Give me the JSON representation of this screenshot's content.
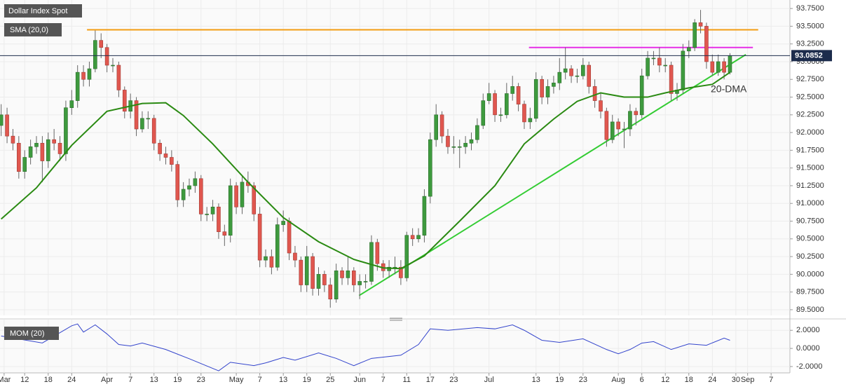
{
  "chart_data": {
    "type": "candlestick",
    "xlim": [
      -0.2,
      134.2
    ],
    "ylim": [
      89.42,
      93.87
    ],
    "grid": true,
    "up_color": "#3e9a3e",
    "down_color": "#e0574f",
    "xticks": [
      {
        "value": 0.5,
        "label": "Mar"
      },
      {
        "value": 4,
        "label": "12"
      },
      {
        "value": 8,
        "label": "18"
      },
      {
        "value": 12,
        "label": "24"
      },
      {
        "value": 18,
        "label": "Apr"
      },
      {
        "value": 22,
        "label": "7"
      },
      {
        "value": 26,
        "label": "13"
      },
      {
        "value": 30,
        "label": "19"
      },
      {
        "value": 34,
        "label": "23"
      },
      {
        "value": 40,
        "label": "May"
      },
      {
        "value": 44,
        "label": "7"
      },
      {
        "value": 48,
        "label": "13"
      },
      {
        "value": 52,
        "label": "19"
      },
      {
        "value": 56,
        "label": "25"
      },
      {
        "value": 61,
        "label": "Jun"
      },
      {
        "value": 65,
        "label": "7"
      },
      {
        "value": 69,
        "label": "11"
      },
      {
        "value": 73,
        "label": "17"
      },
      {
        "value": 77,
        "label": "23"
      },
      {
        "value": 83,
        "label": "Jul"
      },
      {
        "value": 91,
        "label": "13"
      },
      {
        "value": 95,
        "label": "19"
      },
      {
        "value": 99,
        "label": "23"
      },
      {
        "value": 105,
        "label": "Aug"
      },
      {
        "value": 109,
        "label": "6"
      },
      {
        "value": 113,
        "label": "12"
      },
      {
        "value": 117,
        "label": "18"
      },
      {
        "value": 121,
        "label": "24"
      },
      {
        "value": 125,
        "label": "30"
      },
      {
        "value": 127,
        "label": "Sep"
      },
      {
        "value": 131,
        "label": "7"
      }
    ],
    "yticks": [
      {
        "value": 89.5,
        "label": "89.5000"
      },
      {
        "value": 89.75,
        "label": "89.7500"
      },
      {
        "value": 90.0,
        "label": "90.0000"
      },
      {
        "value": 90.25,
        "label": "90.2500"
      },
      {
        "value": 90.5,
        "label": "90.5000"
      },
      {
        "value": 90.75,
        "label": "90.7500"
      },
      {
        "value": 91.0,
        "label": "91.0000"
      },
      {
        "value": 91.25,
        "label": "91.2500"
      },
      {
        "value": 91.5,
        "label": "91.5000"
      },
      {
        "value": 91.75,
        "label": "91.7500"
      },
      {
        "value": 92.0,
        "label": "92.0000"
      },
      {
        "value": 92.25,
        "label": "92.2500"
      },
      {
        "value": 92.5,
        "label": "92.5000"
      },
      {
        "value": 92.75,
        "label": "92.7500"
      },
      {
        "value": 93.0,
        "label": "93.0000"
      },
      {
        "value": 93.25,
        "label": "93.2500"
      },
      {
        "value": 93.5,
        "label": "93.5000"
      },
      {
        "value": 93.75,
        "label": "93.7500"
      }
    ],
    "last_price": 93.0852,
    "series": [
      {
        "name": "Dollar Index Spot",
        "open": [
          92.1,
          92.25,
          91.95,
          91.85,
          91.45,
          91.65,
          91.8,
          91.85,
          91.6,
          91.9,
          91.85,
          91.7,
          92.35,
          92.45,
          92.85,
          92.75,
          92.9,
          93.3,
          93.2,
          92.95,
          92.95,
          92.6,
          92.3,
          92.45,
          92.05,
          92.2,
          92.2,
          91.85,
          91.7,
          91.65,
          91.55,
          91.05,
          91.2,
          91.25,
          91.35,
          90.85,
          90.85,
          90.95,
          90.6,
          90.55,
          91.25,
          90.95,
          91.3,
          91.25,
          90.85,
          90.2,
          90.25,
          90.1,
          90.7,
          90.75,
          90.3,
          90.2,
          89.85,
          90.25,
          89.8,
          90.0,
          89.85,
          89.65,
          90.05,
          89.95,
          90.05,
          89.85,
          89.9,
          89.9,
          90.45,
          90.15,
          90.05,
          90.1,
          90.1,
          89.95,
          90.55,
          90.5,
          90.55,
          91.1,
          91.9,
          92.25,
          91.95,
          91.8,
          91.8,
          91.8,
          91.85,
          91.9,
          92.1,
          92.45,
          92.55,
          92.25,
          92.25,
          92.55,
          92.65,
          92.4,
          92.15,
          92.2,
          92.75,
          92.5,
          92.65,
          92.7,
          92.85,
          92.9,
          92.8,
          92.8,
          92.95,
          92.65,
          92.45,
          92.3,
          91.9,
          92.15,
          92.05,
          92.05,
          92.3,
          92.25,
          92.8,
          93.05,
          93.05,
          92.95,
          92.95,
          92.55,
          92.6,
          93.15,
          93.2,
          93.55,
          93.5,
          93.0,
          92.85,
          93.0,
          92.85
        ],
        "high": [
          92.4,
          92.35,
          92.05,
          91.95,
          91.75,
          91.9,
          91.95,
          91.95,
          92.0,
          92.05,
          91.95,
          92.45,
          92.6,
          92.95,
          92.95,
          93.0,
          93.44,
          93.4,
          93.25,
          93.05,
          93.0,
          92.65,
          92.55,
          92.5,
          92.3,
          92.3,
          92.25,
          91.9,
          91.8,
          91.75,
          91.6,
          91.3,
          91.35,
          91.45,
          91.4,
          90.95,
          91.05,
          91.0,
          90.7,
          91.35,
          91.3,
          91.4,
          91.45,
          91.3,
          90.95,
          90.35,
          90.35,
          90.8,
          90.9,
          90.8,
          90.4,
          90.25,
          90.4,
          90.3,
          90.1,
          90.05,
          89.95,
          90.15,
          90.1,
          90.25,
          90.1,
          90.0,
          90.0,
          90.55,
          90.5,
          90.2,
          90.2,
          90.25,
          90.2,
          90.6,
          90.65,
          90.65,
          91.2,
          92.0,
          92.4,
          92.3,
          92.05,
          91.95,
          91.9,
          91.95,
          92.0,
          92.2,
          92.55,
          92.7,
          92.6,
          92.35,
          92.7,
          92.8,
          92.7,
          92.45,
          92.35,
          92.85,
          92.8,
          92.75,
          92.8,
          93.05,
          93.2,
          92.95,
          92.9,
          93.05,
          93.0,
          92.75,
          92.55,
          92.35,
          92.25,
          92.2,
          92.15,
          92.4,
          92.35,
          92.9,
          93.15,
          93.15,
          93.2,
          93.05,
          93.0,
          92.7,
          93.25,
          93.3,
          93.6,
          93.73,
          93.55,
          93.1,
          93.1,
          93.05,
          93.12
        ],
        "low": [
          91.95,
          91.85,
          91.75,
          91.35,
          91.35,
          91.55,
          91.7,
          91.3,
          91.5,
          91.75,
          91.6,
          91.6,
          92.25,
          92.35,
          92.65,
          92.65,
          92.85,
          93.05,
          92.85,
          92.85,
          92.5,
          92.2,
          92.2,
          91.95,
          92.0,
          92.05,
          91.75,
          91.6,
          91.55,
          91.45,
          90.95,
          90.95,
          91.1,
          91.15,
          90.75,
          90.75,
          90.75,
          90.5,
          90.4,
          90.45,
          90.85,
          90.85,
          91.15,
          90.75,
          90.1,
          90.1,
          90.0,
          90.05,
          90.6,
          90.2,
          90.1,
          89.75,
          89.75,
          89.7,
          89.7,
          89.75,
          89.53,
          89.6,
          89.85,
          89.85,
          89.75,
          89.65,
          89.8,
          89.85,
          90.05,
          89.95,
          89.95,
          90.0,
          89.85,
          89.9,
          90.4,
          90.45,
          90.45,
          91.0,
          91.8,
          91.85,
          91.7,
          91.7,
          91.5,
          91.7,
          91.75,
          91.85,
          92.05,
          92.4,
          92.15,
          92.15,
          92.2,
          92.45,
          92.3,
          92.05,
          92.05,
          92.15,
          92.4,
          92.4,
          92.55,
          92.6,
          92.75,
          92.7,
          92.7,
          92.75,
          92.55,
          92.35,
          92.2,
          91.8,
          91.85,
          91.95,
          91.78,
          91.95,
          92.1,
          92.2,
          92.75,
          92.95,
          92.85,
          92.85,
          92.45,
          92.45,
          92.55,
          93.05,
          93.15,
          93.4,
          92.9,
          92.8,
          92.8,
          92.75,
          92.82
        ],
        "close": [
          92.25,
          91.95,
          91.85,
          91.45,
          91.65,
          91.8,
          91.85,
          91.6,
          91.9,
          91.85,
          91.7,
          92.35,
          92.45,
          92.85,
          92.75,
          92.9,
          93.3,
          93.2,
          92.95,
          92.95,
          92.6,
          92.3,
          92.45,
          92.05,
          92.2,
          92.2,
          91.85,
          91.7,
          91.65,
          91.55,
          91.05,
          91.2,
          91.25,
          91.35,
          90.85,
          90.85,
          90.95,
          90.6,
          90.55,
          91.25,
          90.95,
          91.3,
          91.25,
          90.85,
          90.2,
          90.25,
          90.1,
          90.7,
          90.75,
          90.3,
          90.2,
          89.85,
          90.25,
          89.8,
          90.0,
          89.85,
          89.65,
          90.05,
          89.95,
          90.05,
          89.85,
          89.9,
          89.9,
          90.45,
          90.15,
          90.05,
          90.1,
          90.1,
          89.95,
          90.55,
          90.5,
          90.55,
          91.1,
          91.9,
          92.25,
          91.95,
          91.8,
          91.8,
          91.8,
          91.85,
          91.9,
          92.1,
          92.45,
          92.55,
          92.25,
          92.25,
          92.55,
          92.65,
          92.4,
          92.15,
          92.2,
          92.75,
          92.5,
          92.65,
          92.7,
          92.85,
          92.9,
          92.8,
          92.8,
          92.95,
          92.65,
          92.45,
          92.3,
          91.9,
          92.15,
          92.05,
          92.05,
          92.3,
          92.25,
          92.8,
          93.05,
          93.05,
          92.95,
          92.95,
          92.55,
          92.6,
          93.15,
          93.2,
          93.55,
          93.5,
          93.0,
          92.85,
          93.0,
          92.85,
          93.0852
        ]
      },
      {
        "name": "SMA (20,0)",
        "color": "#2a8a12",
        "x": [
          0,
          6,
          12,
          18,
          24,
          28,
          31,
          36,
          42,
          48,
          54,
          60,
          65,
          68,
          72,
          78,
          84,
          89,
          94,
          98,
          102,
          106,
          110,
          113,
          117,
          121,
          124
        ],
        "values": [
          90.78,
          91.22,
          91.82,
          92.3,
          92.41,
          92.42,
          92.24,
          91.84,
          91.3,
          90.8,
          90.46,
          90.21,
          90.09,
          90.08,
          90.26,
          90.75,
          91.25,
          91.84,
          92.19,
          92.44,
          92.56,
          92.5,
          92.5,
          92.56,
          92.63,
          92.68,
          92.85
        ]
      }
    ],
    "levels": [
      {
        "color": "#f39c12",
        "x": [
          14.6,
          128.8
        ],
        "y": [
          93.45,
          93.45
        ]
      },
      {
        "color": "#e62ee6",
        "x": [
          89.8,
          127.9
        ],
        "y": [
          93.2,
          93.2
        ]
      },
      {
        "color": "#33cc33",
        "x": [
          60.9,
          126.7
        ],
        "y": [
          89.7,
          93.1
        ]
      }
    ],
    "annotation": "20-DMA",
    "momentum": {
      "name": "MOM (20)",
      "color": "#3344cc",
      "ylim": [
        -2.7,
        3.18
      ],
      "yticks": [
        {
          "value": 2,
          "label": "2.0000"
        },
        {
          "value": 0,
          "label": "0.0000"
        },
        {
          "value": -2,
          "label": "-2.0000"
        }
      ],
      "x": [
        0,
        7,
        12,
        13,
        14,
        16,
        18,
        20,
        22,
        24,
        28,
        32,
        37,
        39,
        43,
        45,
        48,
        50,
        54,
        57,
        60,
        63,
        68,
        71,
        73,
        76,
        81,
        84,
        87,
        89,
        92,
        95,
        99,
        103,
        105,
        107,
        109,
        111,
        114,
        117,
        120,
        123,
        124
      ],
      "values": [
        1.37,
        0.6,
        2.5,
        2.7,
        1.8,
        2.6,
        1.6,
        0.43,
        0.27,
        0.6,
        -0.12,
        -1.14,
        -2.47,
        -1.53,
        -1.9,
        -1.6,
        -1.0,
        -1.3,
        -0.5,
        -1.1,
        -1.9,
        -1.1,
        -0.75,
        0.43,
        2.16,
        2.0,
        2.3,
        2.16,
        2.6,
        2.0,
        0.9,
        0.67,
        1.06,
        -0.12,
        -0.59,
        -0.12,
        0.59,
        0.75,
        -0.12,
        0.5,
        0.35,
        1.14,
        0.9
      ]
    }
  }
}
